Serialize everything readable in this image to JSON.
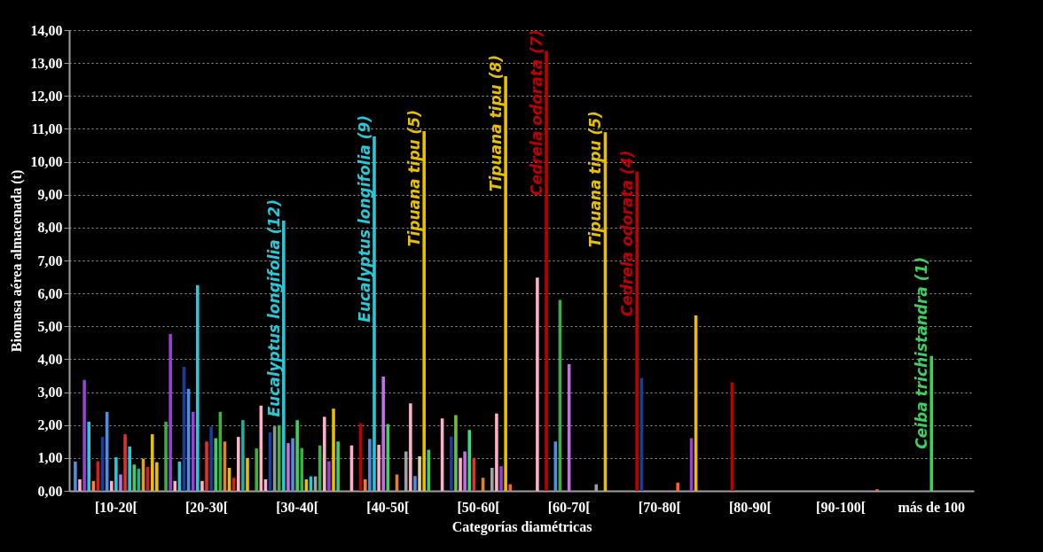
{
  "chart_data": {
    "type": "bar",
    "xlabel": "Categorías diamétricas",
    "ylabel": "Biomasa aérea almacenada (t)",
    "ylim": [
      0,
      14
    ],
    "yticks": [
      {
        "value": 0,
        "label": "0,00"
      },
      {
        "value": 1,
        "label": "1,00"
      },
      {
        "value": 2,
        "label": "2,00"
      },
      {
        "value": 3,
        "label": "3,00"
      },
      {
        "value": 4,
        "label": "4,00"
      },
      {
        "value": 5,
        "label": "5,00"
      },
      {
        "value": 6,
        "label": "6,00"
      },
      {
        "value": 7,
        "label": "7,00"
      },
      {
        "value": 8,
        "label": "8,00"
      },
      {
        "value": 9,
        "label": "9,00"
      },
      {
        "value": 10,
        "label": "10,00"
      },
      {
        "value": 11,
        "label": "11,00"
      },
      {
        "value": 12,
        "label": "12,00"
      },
      {
        "value": 13,
        "label": "13,00"
      },
      {
        "value": 14,
        "label": "14,00"
      }
    ],
    "grid": "y",
    "categories": [
      null,
      null,
      null,
      null,
      null,
      null,
      null,
      null,
      null,
      null,
      "[10-20[",
      null,
      null,
      null,
      null,
      null,
      null,
      null,
      null,
      null,
      null,
      null,
      null,
      null,
      null,
      null,
      null,
      null,
      null,
      null,
      "[20-30[",
      null,
      null,
      null,
      null,
      null,
      null,
      null,
      null,
      null,
      null,
      null,
      null,
      null,
      null,
      null,
      null,
      null,
      null,
      null,
      "[30-40[",
      null,
      null,
      null,
      null,
      null,
      null,
      null,
      null,
      null,
      null,
      null,
      null,
      null,
      null,
      null,
      null,
      null,
      null,
      null,
      "[40-50[",
      null,
      null,
      null,
      null,
      null,
      null,
      null,
      null,
      null,
      null,
      null,
      null,
      null,
      null,
      null,
      null,
      null,
      null,
      null,
      "[50-60[",
      null,
      null,
      null,
      null,
      null,
      null,
      null,
      null,
      null,
      null,
      null,
      null,
      null,
      null,
      null,
      null,
      null,
      null,
      null,
      "[60-70[",
      null,
      null,
      null,
      null,
      null,
      null,
      null,
      null,
      null,
      null,
      null,
      null,
      null,
      null,
      null,
      null,
      null,
      null,
      null,
      "[70-80[",
      null,
      null,
      null,
      null,
      null,
      null,
      null,
      null,
      null,
      null,
      null,
      null,
      null,
      null,
      null,
      null,
      null,
      null,
      null,
      "[80-90[",
      null,
      null,
      null,
      null,
      null,
      null,
      null,
      null,
      null,
      null,
      null,
      null,
      null,
      null,
      null,
      null,
      null,
      null,
      null,
      "[90-100[",
      null,
      null,
      null,
      null,
      null,
      null,
      null,
      null,
      null,
      null,
      null,
      null,
      null,
      null,
      null,
      null,
      null,
      null,
      null,
      "más de 100",
      null,
      null,
      null,
      null,
      null,
      null,
      null,
      null,
      null
    ],
    "values": [
      null,
      0.89,
      0.35,
      3.37,
      2.1,
      0.3,
      0.9,
      1.64,
      2.4,
      0.3,
      1.02,
      0.5,
      1.72,
      1.35,
      0.8,
      0.67,
      0.98,
      0.73,
      1.72,
      0.87,
      null,
      2.1,
      4.77,
      0.3,
      0.89,
      3.77,
      3.1,
      2.4,
      6.25,
      0.3,
      1.5,
      1.95,
      1.6,
      2.4,
      1.5,
      0.7,
      0.4,
      1.64,
      2.15,
      1.0,
      null,
      1.29,
      2.59,
      0.35,
      1.78,
      1.96,
      2.0,
      8.21,
      1.45,
      1.6,
      2.15,
      1.3,
      0.35,
      0.44,
      0.44,
      1.38,
      2.25,
      0.9,
      2.5,
      1.5,
      null,
      null,
      1.38,
      null,
      2.05,
      0.35,
      1.58,
      10.77,
      1.4,
      3.47,
      2.03,
      null,
      0.5,
      null,
      1.2,
      2.66,
      0.45,
      1.05,
      10.93,
      1.25,
      null,
      null,
      2.2,
      null,
      1.65,
      2.3,
      1.0,
      1.2,
      1.85,
      1.0,
      null,
      0.4,
      null,
      0.7,
      2.35,
      0.75,
      12.6,
      0.2,
      null,
      null,
      null,
      null,
      null,
      6.48,
      null,
      13.37,
      null,
      1.5,
      5.8,
      null,
      3.85,
      null,
      null,
      null,
      null,
      null,
      0.2,
      null,
      10.9,
      null,
      null,
      null,
      null,
      null,
      null,
      9.7,
      3.43,
      null,
      null,
      null,
      null,
      null,
      null,
      null,
      0.25,
      null,
      null,
      1.6,
      5.33,
      null,
      null,
      null,
      null,
      null,
      null,
      null,
      3.3,
      null,
      null,
      null,
      null,
      null,
      null,
      null,
      null,
      null,
      null,
      null,
      null,
      null,
      null,
      null,
      null,
      null,
      null,
      null,
      null,
      null,
      null,
      null,
      null,
      null,
      null,
      null,
      null,
      null,
      null,
      null,
      0.05,
      null,
      null,
      null,
      null,
      null,
      null,
      null,
      null,
      null,
      null,
      null,
      4.1,
      null,
      null,
      null,
      null,
      null,
      null,
      null,
      null,
      null
    ],
    "colors": [
      null,
      "#4f8fe0",
      "#ffb0c8",
      "#9b3fd6",
      "#27c8d8",
      "#ff8040",
      "#d02020",
      "#1c3c9c",
      "#4f8fe0",
      "#ffb0c8",
      "#27c8d8",
      "#c070e0",
      "#e03030",
      "#27c8d8",
      "#3cd060",
      "#20b0a0",
      "#e0a020",
      "#d02020",
      "#e8c000",
      "#e8c000",
      null,
      "#3cb040",
      "#9b3fd6",
      "#ffb0c8",
      "#27c8d8",
      "#1c3c9c",
      "#4f8fe0",
      "#9b3fd6",
      "#27c8d8",
      "#ffb0c8",
      "#e03030",
      "#1c3c9c",
      "#3cd060",
      "#3cb040",
      "#e08030",
      "#e8c000",
      "#d02020",
      "#ffb0c8",
      "#20b0a0",
      "#e8c000",
      null,
      "#3cb040",
      "#ffb0c8",
      "#ffb0c8",
      "#1c3c9c",
      "#8a9a8a",
      "#3cb040",
      "#27c8d8",
      "#c070e0",
      "#4f8fe0",
      "#3cd060",
      "#3cb040",
      "#e8c000",
      "#27c8d8",
      "#a0a0a0",
      "#3cb040",
      "#ffb0c8",
      "#9b3fd6",
      "#e8c000",
      "#3cd060",
      null,
      null,
      "#ffb0c8",
      null,
      "#c00000",
      "#e08030",
      "#4f8fe0",
      "#27c8d8",
      "#ffb0c8",
      "#c070e0",
      "#3cd060",
      null,
      "#e08030",
      null,
      "#a0a0a0",
      "#ffb0c8",
      "#4f8fe0",
      "#e0d0a0",
      "#e8c000",
      "#3cd060",
      null,
      null,
      "#ffb0c8",
      null,
      "#1c3c9c",
      "#6cc040",
      "#ffb0c8",
      "#c070e0",
      "#30e080",
      "#e03030",
      null,
      "#e08030",
      null,
      "#a0a0a0",
      "#ffb0c8",
      "#9b3fd6",
      "#e8c000",
      "#ff6020",
      null,
      null,
      null,
      null,
      null,
      "#ffb0c8",
      null,
      "#c00000",
      null,
      "#4f8fe0",
      "#3cb040",
      null,
      "#c070e0",
      null,
      null,
      null,
      null,
      null,
      "#a0a0a0",
      null,
      "#e8c000",
      null,
      null,
      null,
      null,
      null,
      null,
      "#c00000",
      "#1c3c9c",
      null,
      null,
      null,
      null,
      null,
      null,
      null,
      "#ff6020",
      null,
      null,
      "#9b3fd6",
      "#e8c000",
      null,
      null,
      null,
      null,
      null,
      null,
      null,
      "#c00000",
      null,
      null,
      null,
      null,
      null,
      null,
      null,
      null,
      null,
      null,
      null,
      null,
      null,
      null,
      null,
      null,
      null,
      null,
      null,
      null,
      null,
      null,
      null,
      null,
      null,
      null,
      null,
      null,
      null,
      null,
      null,
      "#ff6020",
      null,
      null,
      null,
      null,
      null,
      null,
      null,
      null,
      null,
      null,
      null,
      "#3cd060",
      null,
      null,
      null,
      null,
      null,
      null,
      null,
      null,
      null
    ],
    "annotations": [
      "Eucalyptus longifolia (12)",
      "Eucalyptus longifolia (9)",
      "Tipuana tipu (5)",
      "Tipuana tipu (8)",
      "Cedrela odorata (7)",
      "Tipuana tipu (5)",
      "Cedrela odorata (4)",
      "Ceiba trichistandra (1)"
    ]
  }
}
